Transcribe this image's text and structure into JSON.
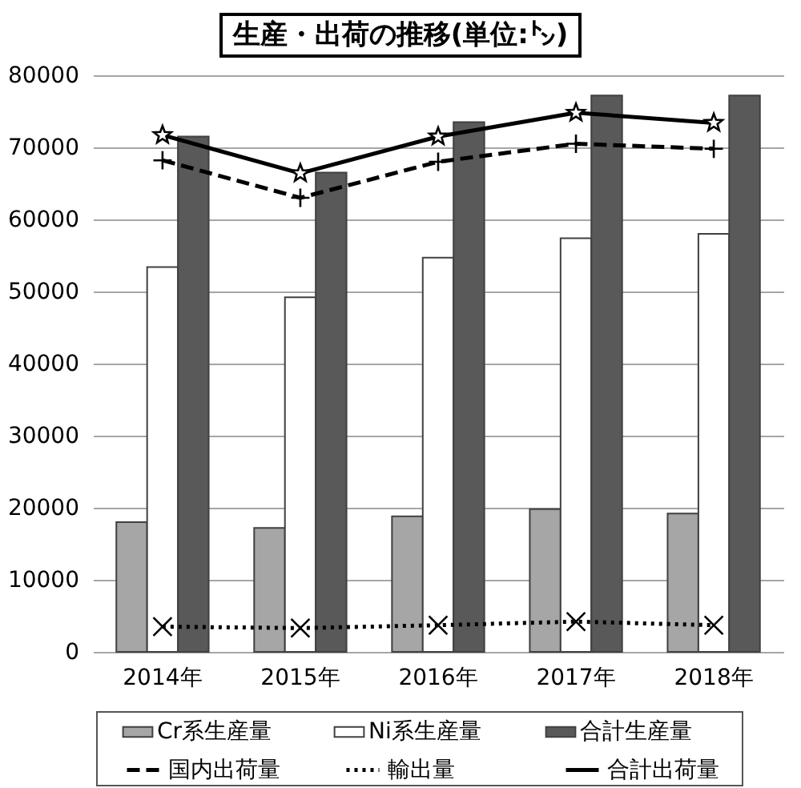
{
  "chart_data": {
    "type": "bar",
    "title": "生産・出荷の推移(単位:㌧)",
    "categories": [
      "2014年",
      "2015年",
      "2016年",
      "2017年",
      "2018年"
    ],
    "series": [
      {
        "name": "Cr系生産量",
        "color": "#a6a6a6",
        "values": [
          18000,
          17200,
          18800,
          19800,
          19200
        ]
      },
      {
        "name": "Ni系生産量",
        "color": "#ffffff",
        "values": [
          53400,
          49200,
          54700,
          57400,
          58000
        ]
      },
      {
        "name": "合計生産量",
        "color": "#595959",
        "values": [
          71500,
          66500,
          73500,
          77200,
          77200
        ]
      },
      {
        "name": "国内出荷量",
        "type": "line",
        "color": "#000000",
        "line_style": "dashed",
        "marker": "plus",
        "values": [
          68200,
          63000,
          68000,
          70500,
          69800
        ]
      },
      {
        "name": "輸出量",
        "type": "line",
        "color": "#000000",
        "line_style": "dotted",
        "marker": "cross",
        "values": [
          3500,
          3300,
          3700,
          4200,
          3700
        ]
      },
      {
        "name": "合計出荷量",
        "type": "line",
        "color": "#000000",
        "line_style": "solid",
        "marker": "star",
        "values": [
          71700,
          66400,
          71500,
          74800,
          73400
        ]
      }
    ],
    "ylim": [
      0,
      80000
    ],
    "yticks": [
      0,
      10000,
      20000,
      30000,
      40000,
      50000,
      60000,
      70000,
      80000
    ],
    "grid": "y",
    "legend": "bottom"
  }
}
